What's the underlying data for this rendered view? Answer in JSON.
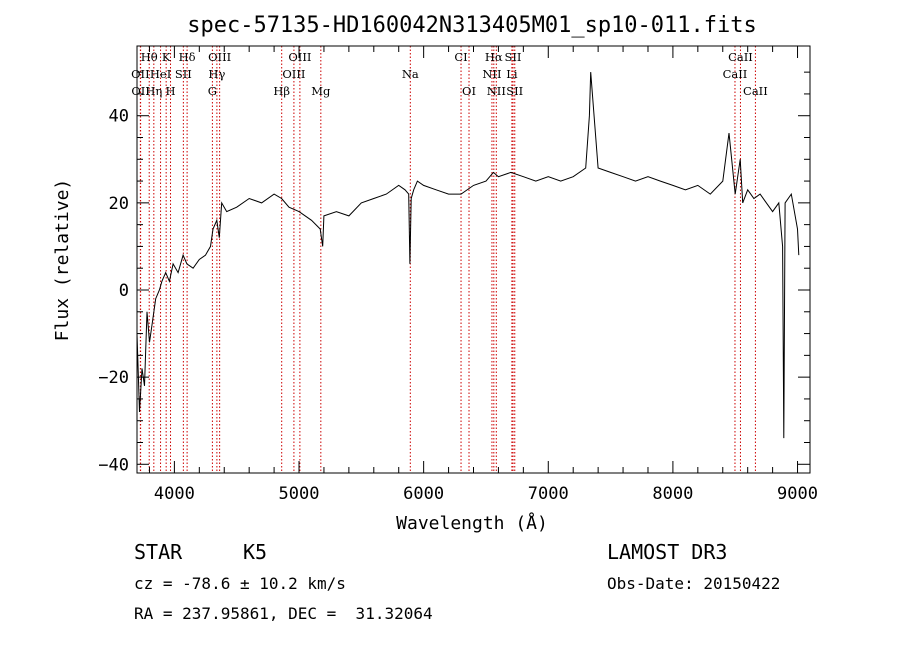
{
  "chart_data": {
    "type": "line",
    "title": "spec-57135-HD160042N313405M01_sp10-011.fits",
    "xlabel": "Wavelength (Å)",
    "ylabel": "Flux (relative)",
    "xlim": [
      3700,
      9100
    ],
    "ylim": [
      -42,
      56
    ],
    "x_ticks": [
      4000,
      5000,
      6000,
      7000,
      8000,
      9000
    ],
    "y_ticks": [
      -40,
      -20,
      0,
      20,
      40
    ],
    "grid": false,
    "series": [
      {
        "x": [
          3700,
          3720,
          3740,
          3760,
          3780,
          3800,
          3820,
          3850,
          3880,
          3900,
          3930,
          3960,
          3990,
          4030,
          4070,
          4100,
          4150,
          4200,
          4250,
          4290,
          4310,
          4340,
          4360,
          4380,
          4420,
          4500,
          4600,
          4700,
          4800,
          4860,
          4920,
          5000,
          5100,
          5170,
          5190,
          5200,
          5300,
          5400,
          5500,
          5600,
          5700,
          5800,
          5850,
          5880,
          5890,
          5900,
          5920,
          5950,
          6000,
          6100,
          6200,
          6300,
          6400,
          6500,
          6560,
          6600,
          6700,
          6800,
          6900,
          7000,
          7100,
          7200,
          7300,
          7330,
          7340,
          7400,
          7500,
          7600,
          7700,
          7800,
          7900,
          8000,
          8100,
          8200,
          8300,
          8400,
          8450,
          8500,
          8540,
          8560,
          8600,
          8650,
          8700,
          8750,
          8800,
          8850,
          8880,
          8890,
          8900,
          8950,
          9000,
          9010
        ],
        "y": [
          -10,
          -28,
          -18,
          -22,
          -5,
          -12,
          -8,
          -2,
          0,
          2,
          4,
          2,
          6,
          4,
          8,
          6,
          5,
          7,
          8,
          10,
          14,
          16,
          12,
          20,
          18,
          19,
          21,
          20,
          22,
          21,
          19,
          18,
          16,
          14,
          10,
          17,
          18,
          17,
          20,
          21,
          22,
          24,
          23,
          22,
          6,
          21,
          23,
          25,
          24,
          23,
          22,
          22,
          24,
          25,
          27,
          26,
          27,
          26,
          25,
          26,
          25,
          26,
          28,
          40,
          50,
          28,
          27,
          26,
          25,
          26,
          25,
          24,
          23,
          24,
          22,
          25,
          36,
          22,
          30,
          20,
          23,
          21,
          22,
          20,
          18,
          20,
          10,
          -34,
          20,
          22,
          14,
          8
        ]
      }
    ],
    "lines": [
      {
        "label": "Hθ",
        "x": 3798,
        "row": 0
      },
      {
        "label": "K",
        "x": 3934,
        "row": 0
      },
      {
        "label": "Hδ",
        "x": 4102,
        "row": 0
      },
      {
        "label": "OIII",
        "x": 4363,
        "row": 0
      },
      {
        "label": "OIII",
        "x": 5007,
        "row": 0
      },
      {
        "label": "CI",
        "x": 6300,
        "row": 0
      },
      {
        "label": "Hα",
        "x": 6563,
        "row": 0
      },
      {
        "label": "SII",
        "x": 6717,
        "row": 0
      },
      {
        "label": "CaII",
        "x": 8542,
        "row": 0
      },
      {
        "label": "OII",
        "x": 3727,
        "row": 1
      },
      {
        "label": "HeI",
        "x": 3889,
        "row": 1
      },
      {
        "label": "SII",
        "x": 4072,
        "row": 1
      },
      {
        "label": "Hγ",
        "x": 4341,
        "row": 1
      },
      {
        "label": "OIII",
        "x": 4959,
        "row": 1
      },
      {
        "label": "Na",
        "x": 5893,
        "row": 1
      },
      {
        "label": "NII",
        "x": 6548,
        "row": 1
      },
      {
        "label": "Li",
        "x": 6708,
        "row": 1
      },
      {
        "label": "CaII",
        "x": 8498,
        "row": 1
      },
      {
        "label": "OII",
        "x": 3729,
        "row": 2
      },
      {
        "label": "Hη",
        "x": 3835,
        "row": 2
      },
      {
        "label": "H",
        "x": 3969,
        "row": 2
      },
      {
        "label": "G",
        "x": 4305,
        "row": 2
      },
      {
        "label": "Hβ",
        "x": 4861,
        "row": 2
      },
      {
        "label": "Mg",
        "x": 5175,
        "row": 2
      },
      {
        "label": "OI",
        "x": 6364,
        "row": 2
      },
      {
        "label": "NII",
        "x": 6583,
        "row": 2
      },
      {
        "label": "SII",
        "x": 6731,
        "row": 2
      },
      {
        "label": "CaII",
        "x": 8662,
        "row": 2
      }
    ]
  },
  "footer": {
    "class_label": "STAR",
    "subclass_label": "K5",
    "survey_label": "LAMOST DR3",
    "cz_text": "cz = -78.6 ± 10.2 km/s",
    "obs_date_text": "Obs-Date: 20150422",
    "radec_text": "RA = 237.95861, DEC =  31.32064"
  },
  "colors": {
    "spectrum": "#000000",
    "line_markers": "#cc0000",
    "axes": "#000000",
    "background": "#ffffff"
  }
}
